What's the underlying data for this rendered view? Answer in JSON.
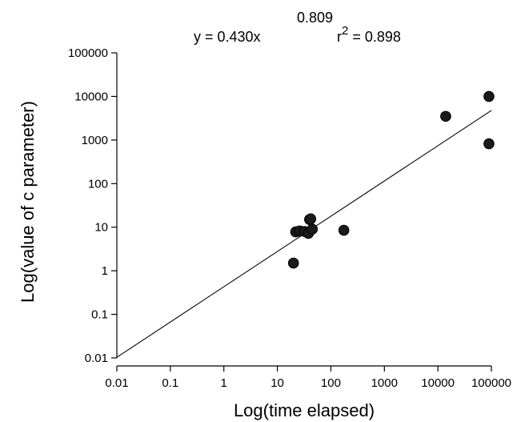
{
  "chart_data": {
    "type": "scatter",
    "x_scale": "log",
    "y_scale": "log",
    "xlabel": "Log(time elapsed)",
    "ylabel": "Log(value of c parameter)",
    "xlim": [
      0.01,
      100000
    ],
    "ylim": [
      0.01,
      100000
    ],
    "x_ticks": [
      "0.01",
      "0.1",
      "1",
      "10",
      "100",
      "1000",
      "10000",
      "100000"
    ],
    "y_ticks": [
      "0.01",
      "0.1",
      "1",
      "10",
      "100",
      "1000",
      "10000",
      "100000"
    ],
    "grid": false,
    "equation": {
      "prefix": "y = 0.430x",
      "exponent": "0.809",
      "r2_prefix": "r",
      "r2_sup": "2",
      "r2_value": " = 0.898"
    },
    "fit_line": {
      "coef": 0.43,
      "exponent": 0.809,
      "x_range": [
        0.01,
        100000
      ]
    },
    "points": [
      {
        "x": 20,
        "y": 1.5
      },
      {
        "x": 22,
        "y": 7.8
      },
      {
        "x": 26,
        "y": 8.2
      },
      {
        "x": 32,
        "y": 8.0
      },
      {
        "x": 38,
        "y": 7.2
      },
      {
        "x": 40,
        "y": 15
      },
      {
        "x": 42,
        "y": 15.5
      },
      {
        "x": 45,
        "y": 9
      },
      {
        "x": 175,
        "y": 8.5
      },
      {
        "x": 14000,
        "y": 3500
      },
      {
        "x": 90000,
        "y": 10000
      },
      {
        "x": 90000,
        "y": 820
      }
    ]
  }
}
